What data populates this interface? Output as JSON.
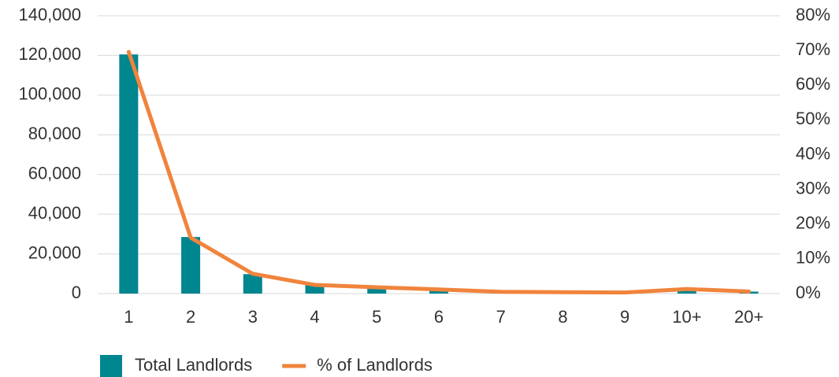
{
  "chart_data": {
    "type": "bar_line",
    "categories": [
      "1",
      "2",
      "3",
      "4",
      "5",
      "6",
      "7",
      "8",
      "9",
      "10+",
      "20+"
    ],
    "series": [
      {
        "name": "Total Landlords",
        "color": "#00868f",
        "type": "bar",
        "values": [
          120500,
          28500,
          9800,
          4400,
          2800,
          1600,
          600,
          400,
          300,
          1500,
          1000
        ]
      },
      {
        "name": "% of Landlords",
        "color": "#f0843c",
        "type": "line",
        "axis": "y2",
        "values": [
          69.6,
          16.1,
          5.7,
          2.5,
          1.8,
          1.2,
          0.5,
          0.4,
          0.3,
          1.3,
          0.6
        ]
      }
    ],
    "ylim": [
      0,
      140000
    ],
    "yticks": [
      0,
      {
        "value": 20000,
        "label": "20,000"
      },
      {
        "value": 40000,
        "label": "40,000"
      },
      {
        "value": 60000,
        "label": "60,000"
      },
      {
        "value": 80000,
        "label": "80,000"
      },
      {
        "value": 100000,
        "label": "100,000"
      },
      {
        "value": 120000,
        "label": "120,000"
      },
      {
        "value": 140000,
        "label": "140,000"
      }
    ],
    "y2lim": [
      0,
      80
    ],
    "y2ticks": [
      {
        "value": 0,
        "label": "0%"
      },
      {
        "value": 10,
        "label": "10%"
      },
      {
        "value": 20,
        "label": "20%"
      },
      {
        "value": 30,
        "label": "30%"
      },
      {
        "value": 40,
        "label": "40%"
      },
      {
        "value": 50,
        "label": "50%"
      },
      {
        "value": 60,
        "label": "60%"
      },
      {
        "value": 70,
        "label": "70%"
      },
      {
        "value": 80,
        "label": "80%"
      }
    ],
    "grid": true,
    "legend": "bottom-left"
  }
}
